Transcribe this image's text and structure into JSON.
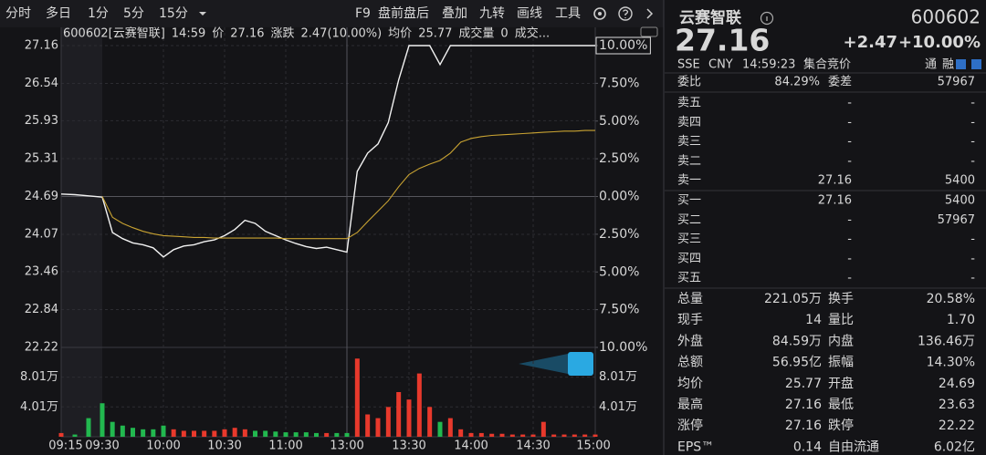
{
  "toolbar": {
    "left": [
      "分时",
      "多日",
      "1分",
      "5分",
      "15分"
    ],
    "right": [
      "F9",
      "盘前盘后",
      "叠加",
      "九转",
      "画线",
      "工具"
    ]
  },
  "chart_data": {
    "type": "line",
    "title": "600602[云赛智联]",
    "time": "14:59",
    "change_label": "涨跌",
    "change": "2.47(10.00%)",
    "volume_now": 0,
    "more": "成交...",
    "categories": [
      "09:15",
      null,
      null,
      "09:30",
      null,
      null,
      null,
      null,
      null,
      "10:00",
      null,
      null,
      null,
      null,
      null,
      "10:30",
      null,
      null,
      null,
      null,
      null,
      "11:00",
      null,
      null,
      null,
      null,
      null,
      "13:00",
      null,
      null,
      null,
      null,
      null,
      "13:30",
      null,
      null,
      null,
      null,
      null,
      "14:00",
      null,
      null,
      null,
      null,
      null,
      "14:30",
      null,
      null,
      null,
      null,
      null,
      "15:00"
    ],
    "series": [
      {
        "name": "价",
        "color": "#f2f2f2",
        "values": [
          24.73,
          24.72,
          24.7,
          24.68,
          24.1,
          24.0,
          23.93,
          23.9,
          23.85,
          23.7,
          23.82,
          23.88,
          23.9,
          23.95,
          23.98,
          24.05,
          24.15,
          24.3,
          24.25,
          24.12,
          24.05,
          23.98,
          23.92,
          23.87,
          23.84,
          23.86,
          23.82,
          23.78,
          25.1,
          25.4,
          25.55,
          25.9,
          26.6,
          27.16,
          27.16,
          27.16,
          26.85,
          27.16,
          27.16,
          27.16,
          27.16,
          27.16,
          27.16,
          27.16,
          27.16,
          27.16,
          27.16,
          27.16,
          27.16,
          27.16,
          27.16,
          27.16
        ]
      },
      {
        "name": "均价",
        "color": "#c9a332",
        "values": [
          null,
          null,
          null,
          24.69,
          24.35,
          24.25,
          24.18,
          24.12,
          24.08,
          24.05,
          24.04,
          24.03,
          24.02,
          24.02,
          24.01,
          24.01,
          24.01,
          24.01,
          24.01,
          24.01,
          24.01,
          24.0,
          24.0,
          24.0,
          24.0,
          24.0,
          24.0,
          24.0,
          24.1,
          24.28,
          24.45,
          24.62,
          24.85,
          25.05,
          25.15,
          25.22,
          25.28,
          25.4,
          25.58,
          25.64,
          25.67,
          25.69,
          25.7,
          25.71,
          25.72,
          25.73,
          25.74,
          25.75,
          25.76,
          25.76,
          25.77,
          25.77
        ]
      },
      {
        "name": "成交量",
        "type": "bar",
        "axis": "y3",
        "up_color": "#e8392c",
        "down_color": "#22b84f",
        "values": [
          0.5,
          0.3,
          2.5,
          4.5,
          2.0,
          1.5,
          1.2,
          1.0,
          1.0,
          1.5,
          1.0,
          0.8,
          0.8,
          0.8,
          0.8,
          1.0,
          1.2,
          1.0,
          0.8,
          0.8,
          0.7,
          0.6,
          0.6,
          0.6,
          0.5,
          0.5,
          0.5,
          0.5,
          10.5,
          3.0,
          2.5,
          4.0,
          6.0,
          5.0,
          8.5,
          4.0,
          2.0,
          2.5,
          1.0,
          0.5,
          0.5,
          0.4,
          0.4,
          0.3,
          0.3,
          0.3,
          2.0,
          0.3,
          0.3,
          0.3,
          0.3,
          0.3
        ]
      }
    ],
    "ylim": [
      22.22,
      27.16
    ],
    "yticks": [
      27.16,
      26.54,
      25.93,
      25.31,
      24.69,
      24.07,
      23.46,
      22.84,
      22.22
    ],
    "y2lim": [
      -10,
      10
    ],
    "y2ticks": [
      {
        "value": 10,
        "label": "10.00%"
      },
      {
        "value": 7.5,
        "label": "7.50%"
      },
      {
        "value": 5,
        "label": "5.00%"
      },
      {
        "value": 2.5,
        "label": "2.50%"
      },
      {
        "value": 0,
        "label": "0.00%"
      },
      {
        "value": -2.5,
        "label": "2.50%"
      },
      {
        "value": -5,
        "label": "5.00%"
      },
      {
        "value": -7.5,
        "label": "7.50%"
      },
      {
        "value": -10,
        "label": "10.00%"
      }
    ],
    "y3lim": [
      0,
      12
    ],
    "y3ticks": [
      {
        "value": 8.01,
        "label": "8.01万"
      },
      {
        "value": 4.01,
        "label": "4.01万"
      }
    ],
    "grid": true
  },
  "quote": {
    "name": "云赛智联",
    "code": "600602",
    "price": "27.16",
    "change": "+2.47",
    "change_pct": "+10.00%",
    "meta": [
      "SSE",
      "CNY",
      "14:59:23",
      "集合竞价"
    ],
    "badges": [
      "通",
      "融"
    ],
    "ratio": [
      "委比",
      "84.29%",
      "委差",
      "57967"
    ],
    "asks": [
      [
        "卖五",
        "-",
        "-"
      ],
      [
        "卖四",
        "-",
        "-"
      ],
      [
        "卖三",
        "-",
        "-"
      ],
      [
        "卖二",
        "-",
        "-"
      ],
      [
        "卖一",
        "27.16",
        "5400"
      ]
    ],
    "bids": [
      [
        "买一",
        "27.16",
        "5400"
      ],
      [
        "买二",
        "-",
        "57967"
      ],
      [
        "买三",
        "-",
        "-"
      ],
      [
        "买四",
        "-",
        "-"
      ],
      [
        "买五",
        "-",
        "-"
      ]
    ],
    "stats": [
      [
        "总量",
        "221.05万",
        "换手",
        "20.58%"
      ],
      [
        "现手",
        "14",
        "量比",
        "1.70"
      ],
      [
        "外盘",
        "84.59万",
        "内盘",
        "136.46万"
      ],
      [
        "总额",
        "56.95亿",
        "振幅",
        "14.30%"
      ],
      [
        "均价",
        "25.77",
        "开盘",
        "24.69"
      ],
      [
        "最高",
        "27.16",
        "最低",
        "23.63"
      ],
      [
        "涨停",
        "27.16",
        "跌停",
        "22.22"
      ],
      [
        "EPS™",
        "0.14",
        "自由流通",
        "6.02亿"
      ]
    ]
  }
}
